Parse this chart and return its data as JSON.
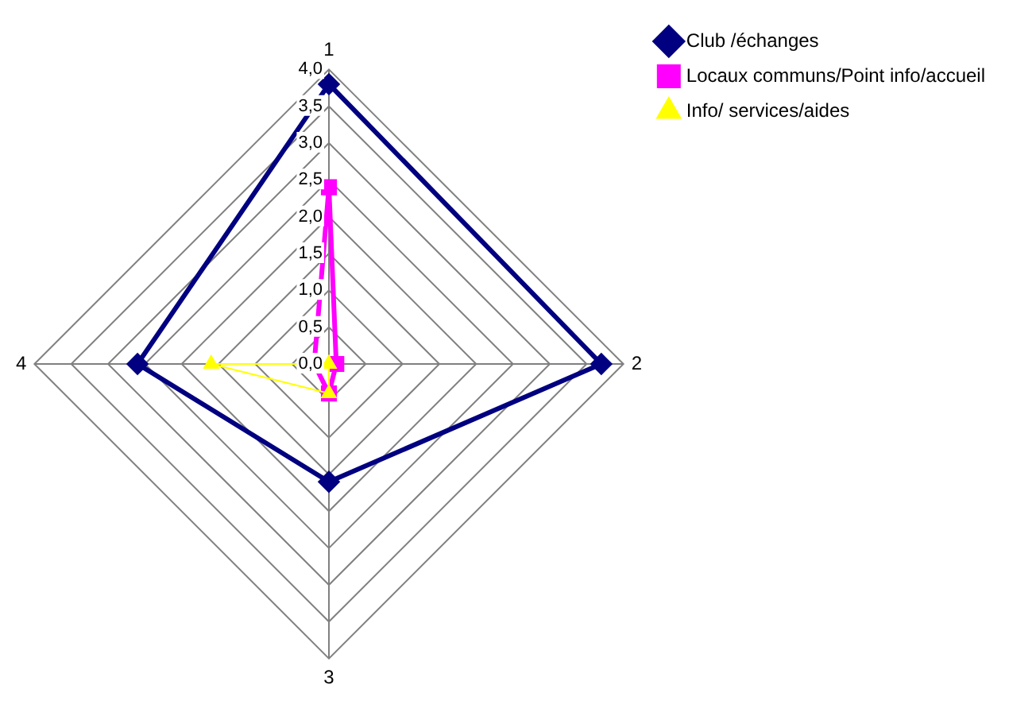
{
  "chart_data": {
    "type": "radar",
    "categories": [
      "1",
      "2",
      "3",
      "4"
    ],
    "series": [
      {
        "name": "Club /échanges",
        "color": "#000080",
        "marker": "diamond",
        "values": [
          3.8,
          3.7,
          1.6,
          2.6
        ]
      },
      {
        "name": "Locaux communs/Point info/accueil",
        "color": "#ff00ff",
        "marker": "square",
        "values": [
          2.4,
          0.1,
          0.4,
          0.2
        ]
      },
      {
        "name": "Info/ services/aides",
        "color": "#ffff00",
        "marker": "triangle",
        "values": [
          0.0,
          0.0,
          0.4,
          1.6
        ]
      }
    ],
    "ylim": [
      0,
      4
    ],
    "yticks": [
      {
        "value": 0,
        "label": "0,0"
      },
      {
        "value": 0.5,
        "label": "0,5"
      },
      {
        "value": 1,
        "label": "1,0"
      },
      {
        "value": 1.5,
        "label": "1,5"
      },
      {
        "value": 2,
        "label": "2,0"
      },
      {
        "value": 2.5,
        "label": "2,5"
      },
      {
        "value": 3,
        "label": "3,0"
      },
      {
        "value": 3.5,
        "label": "3,5"
      },
      {
        "value": 4,
        "label": "4,0"
      }
    ],
    "grid": true,
    "legend": "top right"
  }
}
